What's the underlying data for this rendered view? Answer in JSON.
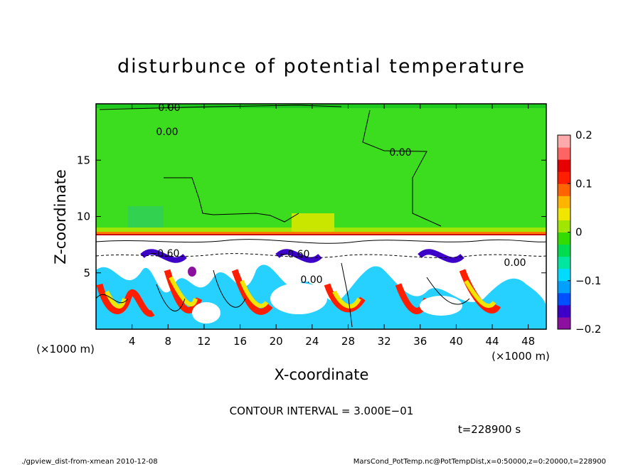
{
  "chart_data": {
    "type": "heatmap",
    "title": "disturbunce of potential temperature",
    "xlabel": "X-coordinate",
    "ylabel": "Z-coordinate",
    "x_unit": "(×1000 m)",
    "z_unit": "(×1000 m)",
    "xlim": [
      0,
      50
    ],
    "zlim": [
      0,
      20
    ],
    "x_ticks": [
      4,
      8,
      12,
      16,
      20,
      24,
      28,
      32,
      36,
      40,
      44,
      48
    ],
    "x_tick_labels": [
      "4",
      "8",
      "12",
      "16",
      "20",
      "24",
      "28",
      "32",
      "36",
      "40",
      "44",
      "48"
    ],
    "z_ticks": [
      5,
      10,
      15
    ],
    "z_tick_labels": [
      "5",
      "10",
      "15"
    ],
    "colorbar": {
      "range": [
        -0.2,
        0.2
      ],
      "ticks": [
        0.2,
        0.1,
        0,
        -0.1,
        -0.2
      ],
      "tick_labels": [
        "0.2",
        "0.1",
        "0",
        "−0.1",
        "−0.2"
      ],
      "colors": [
        "#8c0fa0",
        "#3c00c8",
        "#0050ff",
        "#00a0ff",
        "#00dcff",
        "#00e6a0",
        "#00dc50",
        "#32dc00",
        "#a0e600",
        "#f0e600",
        "#ffb400",
        "#ff6400",
        "#ff1e00",
        "#e60000",
        "#ff6464",
        "#ffaaaa"
      ]
    },
    "contour_labels": [
      "0.00",
      "0.00",
      "0.00",
      "−0.60",
      "−0.60",
      "0.00",
      "0.00"
    ],
    "contour_interval_text": "CONTOUR INTERVAL = 3.000E−01",
    "time_text": "t=228900 s",
    "footer_left": "./gpview_dist-from-xmean   2010-12-08",
    "footer_right": "MarsCond_PotTemp.nc@PotTempDist,x=0:50000,z=0:20000,t=228900"
  }
}
